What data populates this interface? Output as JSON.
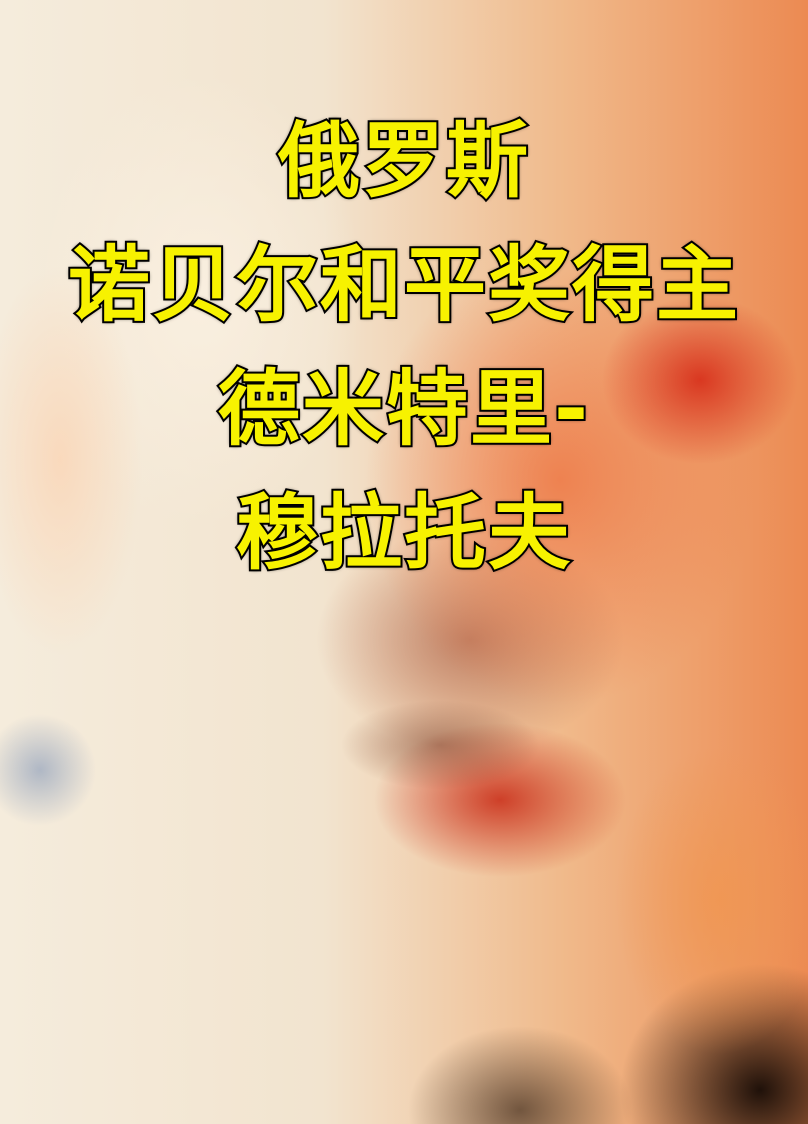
{
  "headline": {
    "lines": [
      "俄罗斯",
      "诺贝尔和平奖得主",
      "德米特里-",
      "穆拉托夫"
    ]
  }
}
